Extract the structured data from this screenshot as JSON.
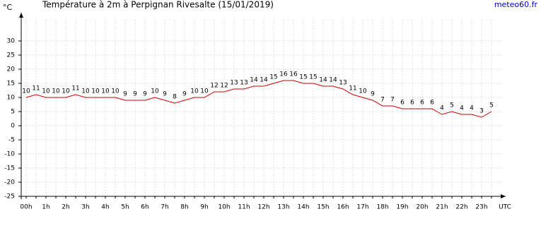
{
  "chart_data": {
    "type": "line",
    "title": "Température à 2m à Perpignan Rivesalte (15/01/2019)",
    "source": "meteo60.fr",
    "y_label": "°C",
    "x_label": "UTC",
    "categories": [
      "00h",
      null,
      "1h",
      null,
      "2h",
      null,
      "3h",
      null,
      "4h",
      null,
      "5h",
      null,
      "6h",
      null,
      "7h",
      null,
      "8h",
      null,
      "9h",
      null,
      "10h",
      null,
      "11h",
      null,
      "12h",
      null,
      "13h",
      null,
      "14h",
      null,
      "15h",
      null,
      "16h",
      null,
      "17h",
      null,
      "18h",
      null,
      "19h",
      null,
      "20h",
      null,
      "21h",
      null,
      "22h",
      null,
      "23h",
      null
    ],
    "series": [
      {
        "name": "Température",
        "color": "#cc0000",
        "values": [
          10,
          11,
          10,
          10,
          10,
          11,
          10,
          10,
          10,
          10,
          9,
          9,
          9,
          10,
          9,
          8,
          9,
          10,
          10,
          12,
          12,
          13,
          13,
          14,
          14,
          15,
          16,
          16,
          15,
          15,
          14,
          14,
          13,
          11,
          10,
          9,
          7,
          7,
          6,
          6,
          6,
          6,
          4,
          5,
          4,
          4,
          3,
          5
        ]
      }
    ],
    "ylim": [
      -25,
      40
    ],
    "yticks": [
      30,
      25,
      20,
      15,
      10,
      5,
      0,
      -5,
      -10,
      -15,
      -20,
      -25
    ],
    "grid": true
  }
}
